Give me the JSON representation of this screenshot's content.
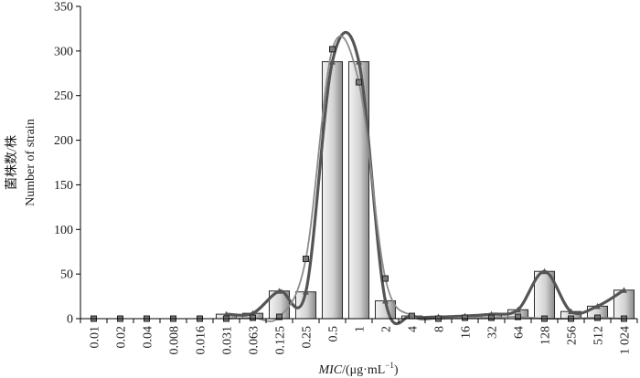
{
  "chart_data": {
    "type": "bar",
    "title": "",
    "xlabel_italic": "MIC",
    "xlabel_rest": "/(μg·mL",
    "xlabel_sup": "−1",
    "xlabel_close": ")",
    "ylabel_cn": "菌株数/株",
    "ylabel_en": "Number of strain",
    "ylim": [
      0,
      350
    ],
    "yticks": [
      0,
      50,
      100,
      150,
      200,
      250,
      300,
      350
    ],
    "categories": [
      "0.01",
      "0.02",
      "0.04",
      "0.008",
      "0.016",
      "0.031",
      "0.063",
      "0.125",
      "0.25",
      "0.5",
      "1",
      "2",
      "4",
      "8",
      "16",
      "32",
      "64",
      "128",
      "256",
      "512",
      "1 024"
    ],
    "bar_values": [
      0,
      0,
      0,
      0,
      0,
      5,
      6,
      31,
      30,
      288,
      288,
      20,
      3,
      2,
      3,
      5,
      10,
      53,
      8,
      14,
      32
    ],
    "marker_values": [
      0,
      0,
      0,
      0,
      0,
      0,
      1,
      2,
      67,
      302,
      265,
      45,
      3,
      0,
      1,
      1,
      2,
      0,
      0,
      1,
      0
    ],
    "grid": false,
    "legend": "none",
    "colors": {
      "bar_light": "#f2f2f2",
      "bar_dark": "#8a8a8a",
      "bar_stroke": "#2b2b2b",
      "fit_thick": "#555555",
      "fit_thin": "#8c8c8c",
      "marker_fill": "#7a7a7a",
      "axis": "#000000"
    }
  }
}
